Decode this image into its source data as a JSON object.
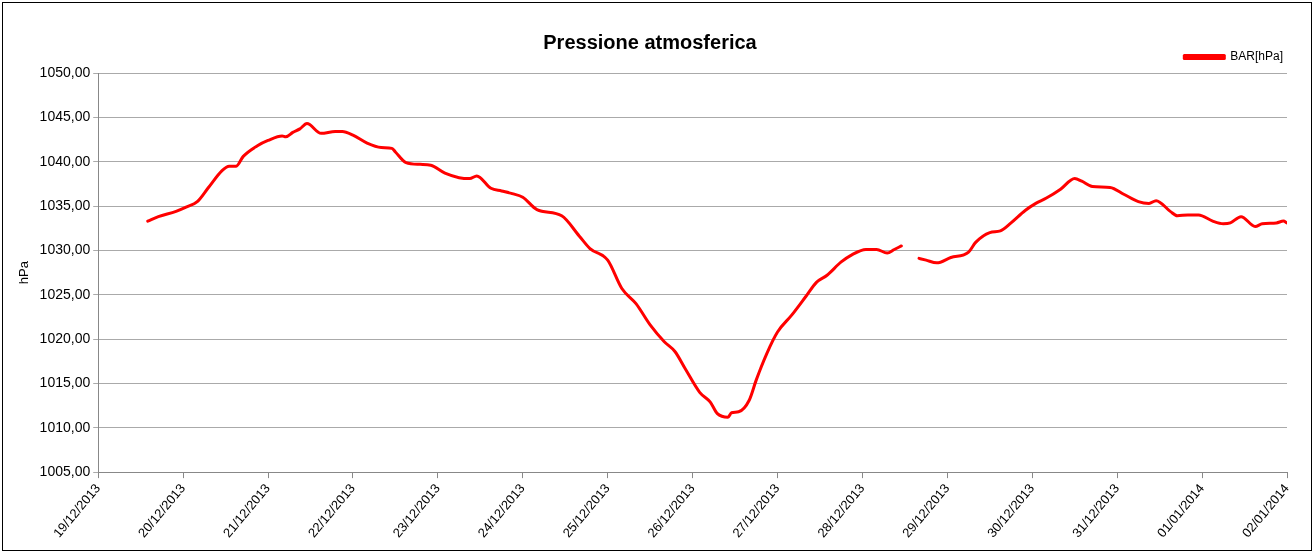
{
  "chart_data": {
    "type": "line",
    "title": "Pressione atmosferica",
    "ylabel": "hPa",
    "x": [
      "2013-12-19T14:00",
      "2013-12-19T17:00",
      "2013-12-19T22:00",
      "2013-12-20T01:00",
      "2013-12-20T04:00",
      "2013-12-20T07:00",
      "2013-12-20T11:00",
      "2013-12-20T13:00",
      "2013-12-20T15:00",
      "2013-12-20T17:00",
      "2013-12-20T21:00",
      "2013-12-21T00:00",
      "2013-12-21T04:00",
      "2013-12-21T05:00",
      "2013-12-21T07:00",
      "2013-12-21T09:00",
      "2013-12-21T11:00",
      "2013-12-21T15:00",
      "2013-12-21T19:00",
      "2013-12-21T21:00",
      "2013-12-22T00:00",
      "2013-12-22T04:00",
      "2013-12-22T08:00",
      "2013-12-22T11:00",
      "2013-12-22T12:00",
      "2013-12-22T15:00",
      "2013-12-22T19:00",
      "2013-12-22T22:00",
      "2013-12-23T02:00",
      "2013-12-23T06:00",
      "2013-12-23T09:00",
      "2013-12-23T11:00",
      "2013-12-23T15:00",
      "2013-12-23T18:00",
      "2013-12-23T21:00",
      "2013-12-24T00:00",
      "2013-12-24T04:00",
      "2013-12-24T11:00",
      "2013-12-24T16:00",
      "2013-12-24T19:00",
      "2013-12-25T00:00",
      "2013-12-25T04:00",
      "2013-12-25T08:00",
      "2013-12-25T12:00",
      "2013-12-25T16:00",
      "2013-12-25T19:00",
      "2013-12-25T22:00",
      "2013-12-26T02:00",
      "2013-12-26T05:00",
      "2013-12-26T07:00",
      "2013-12-26T10:00",
      "2013-12-26T11:00",
      "2013-12-26T13:00",
      "2013-12-26T16:00",
      "2013-12-26T18:00",
      "2013-12-26T21:00",
      "2013-12-27T00:00",
      "2013-12-27T04:00",
      "2013-12-27T08:00",
      "2013-12-27T11:00",
      "2013-12-27T14:00",
      "2013-12-27T18:00",
      "2013-12-27T21:00",
      "2013-12-28T01:00",
      "2013-12-28T04:00",
      "2013-12-28T07:00",
      "2013-12-28T09:00",
      "2013-12-28T11:00",
      "2013-12-28T14:00",
      "2013-12-28T16:00",
      "2013-12-28T18:00",
      "2013-12-28T21:00",
      "2013-12-29T01:00",
      "2013-12-29T06:00",
      "2013-12-29T08:00",
      "2013-12-29T12:00",
      "2013-12-29T15:00",
      "2013-12-29T18:00",
      "2013-12-29T22:00",
      "2013-12-30T01:00",
      "2013-12-30T04:00",
      "2013-12-30T08:00",
      "2013-12-30T12:00",
      "2013-12-30T14:00",
      "2013-12-30T17:00",
      "2013-12-30T22:00",
      "2013-12-31T02:00",
      "2013-12-31T06:00",
      "2013-12-31T09:00",
      "2013-12-31T11:00",
      "2013-12-31T15:00",
      "2013-12-31T17:00",
      "2013-12-31T20:00",
      "2013-12-31T23:00",
      "2014-01-01T03:00",
      "2014-01-01T06:00",
      "2014-01-01T08:00",
      "2014-01-01T11:00",
      "2014-01-01T15:00",
      "2014-01-01T17:00",
      "2014-01-01T21:00",
      "2014-01-01T23:00",
      "2014-01-02T00:00"
    ],
    "series": [
      {
        "name": "BAR[hPa]",
        "color": "#ff0000",
        "values": [
          1033.3,
          1033.8,
          1034.4,
          1034.9,
          1035.5,
          1037.0,
          1039.0,
          1039.5,
          1039.5,
          1040.6,
          1041.8,
          1042.4,
          1042.9,
          1042.8,
          1043.3,
          1043.7,
          1044.3,
          1043.2,
          1043.4,
          1043.4,
          1043.0,
          1042.1,
          1041.6,
          1041.5,
          1041.1,
          1039.9,
          1039.7,
          1039.6,
          1038.7,
          1038.2,
          1038.1,
          1038.4,
          1037.0,
          1036.7,
          1036.4,
          1036.0,
          1034.6,
          1033.9,
          1031.6,
          1030.2,
          1028.9,
          1025.7,
          1024.0,
          1021.6,
          1019.7,
          1018.6,
          1016.6,
          1014.0,
          1012.9,
          1011.6,
          1011.2,
          1011.7,
          1011.8,
          1013.1,
          1015.4,
          1018.4,
          1020.8,
          1022.7,
          1024.8,
          1026.4,
          1027.2,
          1028.7,
          1029.5,
          1030.1,
          1030.1,
          1029.7,
          1030.1,
          1030.5,
          null,
          1029.1,
          1028.9,
          1028.6,
          1029.2,
          1029.8,
          1030.9,
          1032.0,
          1032.2,
          1033.1,
          1034.5,
          1035.3,
          1035.9,
          1036.9,
          1038.1,
          1037.8,
          1037.2,
          1037.1,
          1036.3,
          1035.5,
          1035.3,
          1035.6,
          1034.4,
          1033.9,
          1034.0,
          1034.0,
          1033.3,
          1033.0,
          1033.1,
          1033.8,
          1032.7,
          1033.0,
          1033.1,
          1033.3,
          1033.1
        ]
      }
    ],
    "xlim": [
      "2013-12-19",
      "2014-01-02"
    ],
    "xticks": [
      {
        "value": "2013-12-19",
        "label": "19/12/2013"
      },
      {
        "value": "2013-12-20",
        "label": "20/12/2013"
      },
      {
        "value": "2013-12-21",
        "label": "21/12/2013"
      },
      {
        "value": "2013-12-22",
        "label": "22/12/2013"
      },
      {
        "value": "2013-12-23",
        "label": "23/12/2013"
      },
      {
        "value": "2013-12-24",
        "label": "24/12/2013"
      },
      {
        "value": "2013-12-25",
        "label": "25/12/2013"
      },
      {
        "value": "2013-12-26",
        "label": "26/12/2013"
      },
      {
        "value": "2013-12-27",
        "label": "27/12/2013"
      },
      {
        "value": "2013-12-28",
        "label": "28/12/2013"
      },
      {
        "value": "2013-12-29",
        "label": "29/12/2013"
      },
      {
        "value": "2013-12-30",
        "label": "30/12/2013"
      },
      {
        "value": "2013-12-31",
        "label": "31/12/2013"
      },
      {
        "value": "2014-01-01",
        "label": "01/01/2014"
      },
      {
        "value": "2014-01-02",
        "label": "02/01/2014"
      }
    ],
    "ylim": [
      1005,
      1050
    ],
    "yticks": [
      {
        "value": 1005,
        "label": "1005,00"
      },
      {
        "value": 1010,
        "label": "1010,00"
      },
      {
        "value": 1015,
        "label": "1015,00"
      },
      {
        "value": 1020,
        "label": "1020,00"
      },
      {
        "value": 1025,
        "label": "1025,00"
      },
      {
        "value": 1030,
        "label": "1030,00"
      },
      {
        "value": 1035,
        "label": "1035,00"
      },
      {
        "value": 1040,
        "label": "1040,00"
      },
      {
        "value": 1045,
        "label": "1045,00"
      },
      {
        "value": 1050,
        "label": "1050,00"
      }
    ],
    "grid": "y",
    "legend": "top right",
    "marker": "none",
    "line_style": "solid"
  }
}
